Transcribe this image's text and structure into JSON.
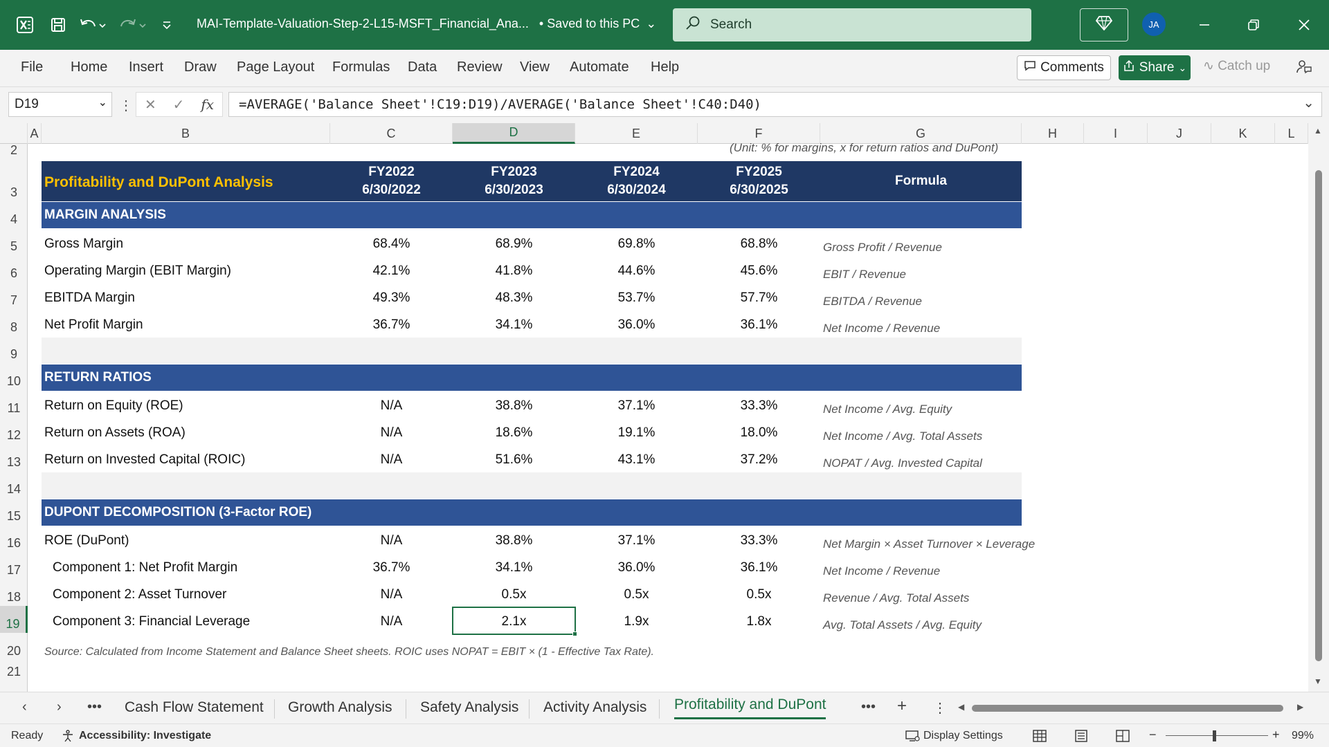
{
  "titlebar": {
    "document_title": "MAI-Template-Valuation-Step-2-L15-MSFT_Financial_Ana...",
    "save_status": "• Saved to this PC",
    "search_placeholder": "Search",
    "avatar_initials": "JA"
  },
  "menu": {
    "items": [
      "File",
      "Home",
      "Insert",
      "Draw",
      "Page Layout",
      "Formulas",
      "Data",
      "Review",
      "View",
      "Automate",
      "Help"
    ],
    "comments_label": "Comments",
    "share_label": "Share",
    "catchup_label": "Catch up"
  },
  "formula_bar": {
    "name_box": "D19",
    "formula": "=AVERAGE('Balance Sheet'!C19:D19)/AVERAGE('Balance Sheet'!C40:D40)"
  },
  "columns": [
    "A",
    "B",
    "C",
    "D",
    "E",
    "F",
    "G",
    "H",
    "I",
    "J",
    "K",
    "L"
  ],
  "rows": [
    "2",
    "3",
    "4",
    "5",
    "6",
    "7",
    "8",
    "9",
    "10",
    "11",
    "12",
    "13",
    "14",
    "15",
    "16",
    "17",
    "18",
    "19",
    "20",
    "21"
  ],
  "sheet": {
    "unit_note": "(Unit: % for margins, x for return ratios and DuPont)",
    "title": "Profitability and DuPont Analysis",
    "headers": [
      {
        "fy": "FY2022",
        "date": "6/30/2022"
      },
      {
        "fy": "FY2023",
        "date": "6/30/2023"
      },
      {
        "fy": "FY2024",
        "date": "6/30/2024"
      },
      {
        "fy": "FY2025",
        "date": "6/30/2025"
      }
    ],
    "formula_header": "Formula",
    "sections": {
      "margin": "MARGIN ANALYSIS",
      "returns": "RETURN RATIOS",
      "dupont": "DUPONT DECOMPOSITION (3-Factor ROE)"
    },
    "margin_rows": [
      {
        "label": "Gross Margin",
        "values": [
          "68.4%",
          "68.9%",
          "69.8%",
          "68.8%"
        ],
        "formula": "Gross Profit / Revenue"
      },
      {
        "label": "Operating Margin (EBIT Margin)",
        "values": [
          "42.1%",
          "41.8%",
          "44.6%",
          "45.6%"
        ],
        "formula": "EBIT / Revenue"
      },
      {
        "label": "EBITDA Margin",
        "values": [
          "49.3%",
          "48.3%",
          "53.7%",
          "57.7%"
        ],
        "formula": "EBITDA / Revenue"
      },
      {
        "label": "Net Profit Margin",
        "values": [
          "36.7%",
          "34.1%",
          "36.0%",
          "36.1%"
        ],
        "formula": "Net Income / Revenue"
      }
    ],
    "return_rows": [
      {
        "label": "Return on Equity (ROE)",
        "values": [
          "N/A",
          "38.8%",
          "37.1%",
          "33.3%"
        ],
        "formula": "Net Income / Avg. Equity"
      },
      {
        "label": "Return on Assets (ROA)",
        "values": [
          "N/A",
          "18.6%",
          "19.1%",
          "18.0%"
        ],
        "formula": "Net Income / Avg. Total Assets"
      },
      {
        "label": "Return on Invested Capital (ROIC)",
        "values": [
          "N/A",
          "51.6%",
          "43.1%",
          "37.2%"
        ],
        "formula": "NOPAT / Avg. Invested Capital"
      }
    ],
    "dupont_rows": [
      {
        "label": "ROE (DuPont)",
        "values": [
          "N/A",
          "38.8%",
          "37.1%",
          "33.3%"
        ],
        "formula": "Net Margin × Asset Turnover × Leverage"
      },
      {
        "label": "Component 1: Net Profit Margin",
        "values": [
          "36.7%",
          "34.1%",
          "36.0%",
          "36.1%"
        ],
        "formula": "Net Income / Revenue"
      },
      {
        "label": "Component 2: Asset Turnover",
        "values": [
          "N/A",
          "0.5x",
          "0.5x",
          "0.5x"
        ],
        "formula": "Revenue / Avg. Total Assets"
      },
      {
        "label": "Component 3: Financial Leverage",
        "values": [
          "N/A",
          "2.1x",
          "1.9x",
          "1.8x"
        ],
        "formula": "Avg. Total Assets / Avg. Equity"
      }
    ],
    "source_note": "Source: Calculated from Income Statement and Balance Sheet sheets. ROIC uses NOPAT = EBIT × (1 - Effective Tax Rate)."
  },
  "tabs": [
    "Cash Flow Statement",
    "Growth Analysis",
    "Safety Analysis",
    "Activity Analysis",
    "Profitability and DuPont"
  ],
  "status": {
    "ready": "Ready",
    "accessibility": "Accessibility: Investigate",
    "display_settings": "Display Settings",
    "zoom": "99%"
  },
  "colors": {
    "brand_green": "#1e7145",
    "header_navy": "#1f3864",
    "section_blue": "#2f5496",
    "title_gold": "#ffc000"
  }
}
